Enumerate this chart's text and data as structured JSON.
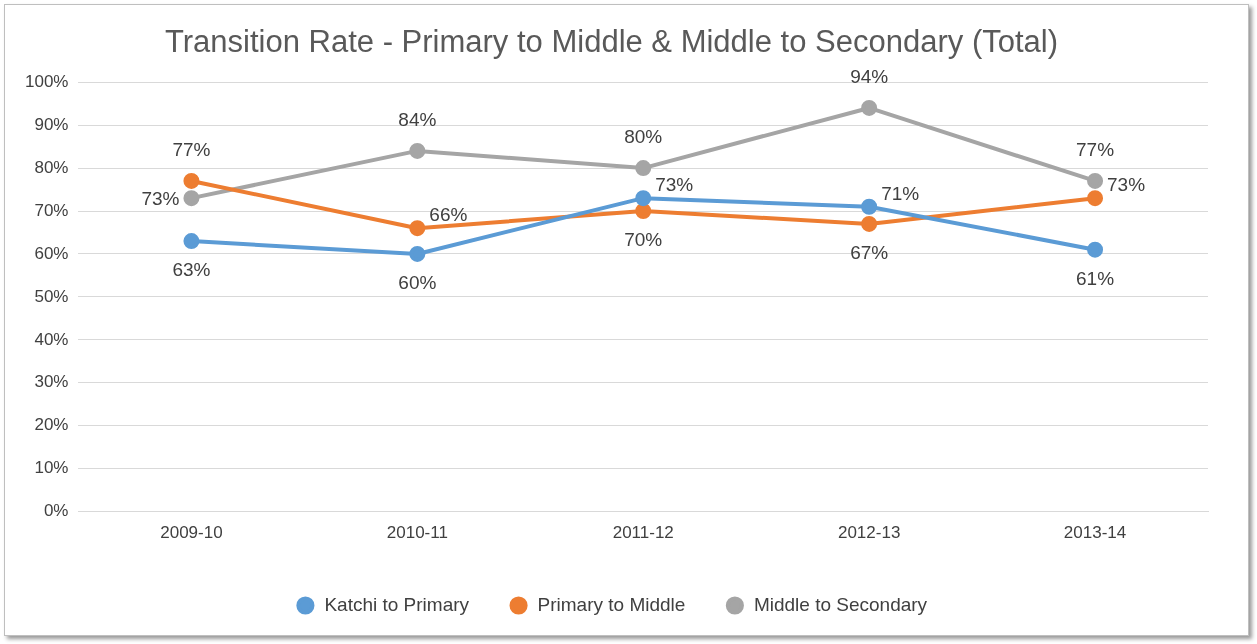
{
  "chart_data": {
    "type": "line",
    "title": "Transition Rate - Primary to Middle & Middle to Secondary (Total)",
    "categories": [
      "2009-10",
      "2010-11",
      "2011-12",
      "2012-13",
      "2013-14"
    ],
    "series": [
      {
        "name": "Katchi to Primary",
        "color": "#5b9bd5",
        "values": [
          63,
          60,
          73,
          71,
          61
        ],
        "value_labels": [
          "63%",
          "60%",
          "73%",
          "71%",
          "61%"
        ]
      },
      {
        "name": "Primary to Middle",
        "color": "#ed7d31",
        "values": [
          77,
          66,
          70,
          67,
          73
        ],
        "value_labels": [
          "77%",
          "66%",
          "70%",
          "67%",
          "73%"
        ]
      },
      {
        "name": "Middle to Secondary",
        "color": "#a5a5a5",
        "values": [
          73,
          84,
          80,
          94,
          77
        ],
        "value_labels": [
          "73%",
          "84%",
          "80%",
          "94%",
          "77%"
        ]
      }
    ],
    "ylim": [
      0,
      100
    ],
    "yticks": [
      {
        "value": 0,
        "label": "0%"
      },
      {
        "value": 10,
        "label": "10%"
      },
      {
        "value": 20,
        "label": "20%"
      },
      {
        "value": 30,
        "label": "30%"
      },
      {
        "value": 40,
        "label": "40%"
      },
      {
        "value": 50,
        "label": "50%"
      },
      {
        "value": 60,
        "label": "60%"
      },
      {
        "value": 70,
        "label": "70%"
      },
      {
        "value": 80,
        "label": "80%"
      },
      {
        "value": 90,
        "label": "90%"
      },
      {
        "value": 100,
        "label": "100%"
      }
    ],
    "grid": "y",
    "legend": "bottom",
    "marker": "circle",
    "line_style": "solid"
  }
}
